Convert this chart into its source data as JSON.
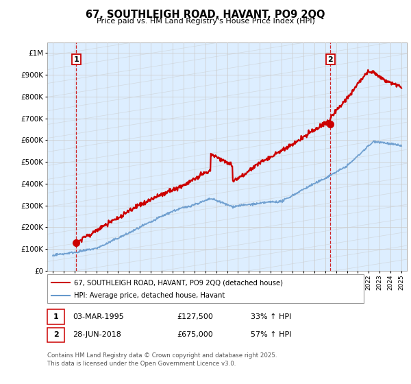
{
  "title": "67, SOUTHLEIGH ROAD, HAVANT, PO9 2QQ",
  "subtitle": "Price paid vs. HM Land Registry's House Price Index (HPI)",
  "ylabel_ticks": [
    "£0",
    "£100K",
    "£200K",
    "£300K",
    "£400K",
    "£500K",
    "£600K",
    "£700K",
    "£800K",
    "£900K",
    "£1M"
  ],
  "ytick_values": [
    0,
    100000,
    200000,
    300000,
    400000,
    500000,
    600000,
    700000,
    800000,
    900000,
    1000000
  ],
  "xlim": [
    1992.5,
    2025.5
  ],
  "ylim": [
    0,
    1050000
  ],
  "legend_line1": "67, SOUTHLEIGH ROAD, HAVANT, PO9 2QQ (detached house)",
  "legend_line2": "HPI: Average price, detached house, Havant",
  "annotation1_label": "1",
  "annotation1_date": "03-MAR-1995",
  "annotation1_price": "£127,500",
  "annotation1_hpi": "33% ↑ HPI",
  "annotation2_label": "2",
  "annotation2_date": "28-JUN-2018",
  "annotation2_price": "£675,000",
  "annotation2_hpi": "57% ↑ HPI",
  "footer": "Contains HM Land Registry data © Crown copyright and database right 2025.\nThis data is licensed under the Open Government Licence v3.0.",
  "line1_color": "#cc0000",
  "line2_color": "#6699cc",
  "point1_x": 1995.17,
  "point1_y": 127500,
  "point2_x": 2018.49,
  "point2_y": 675000,
  "plot_bg_color": "#ddeeff",
  "grid_color": "#bbbbbb"
}
